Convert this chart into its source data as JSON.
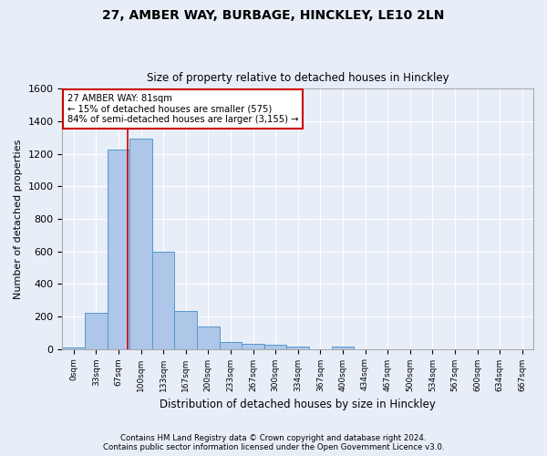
{
  "title1": "27, AMBER WAY, BURBAGE, HINCKLEY, LE10 2LN",
  "title2": "Size of property relative to detached houses in Hinckley",
  "xlabel": "Distribution of detached houses by size in Hinckley",
  "ylabel": "Number of detached properties",
  "footer1": "Contains HM Land Registry data © Crown copyright and database right 2024.",
  "footer2": "Contains public sector information licensed under the Open Government Licence v3.0.",
  "bin_labels": [
    "0sqm",
    "33sqm",
    "67sqm",
    "100sqm",
    "133sqm",
    "167sqm",
    "200sqm",
    "233sqm",
    "267sqm",
    "300sqm",
    "334sqm",
    "367sqm",
    "400sqm",
    "434sqm",
    "467sqm",
    "500sqm",
    "534sqm",
    "567sqm",
    "600sqm",
    "634sqm",
    "667sqm"
  ],
  "bar_values": [
    10,
    220,
    1225,
    1295,
    595,
    235,
    140,
    45,
    30,
    25,
    15,
    0,
    15,
    0,
    0,
    0,
    0,
    0,
    0,
    0,
    0
  ],
  "bar_color": "#aec6e8",
  "bar_edge_color": "#5599cc",
  "bg_color": "#e8eef8",
  "grid_color": "#ffffff",
  "annotation_line1": "27 AMBER WAY: 81sqm",
  "annotation_line2": "← 15% of detached houses are smaller (575)",
  "annotation_line3": "84% of semi-detached houses are larger (3,155) →",
  "annotation_box_color": "#ffffff",
  "annotation_box_edge": "#cc0000",
  "vline_color": "#cc0000",
  "vline_x_data": 2.42,
  "ylim": [
    0,
    1600
  ],
  "yticks": [
    0,
    200,
    400,
    600,
    800,
    1000,
    1200,
    1400,
    1600
  ]
}
